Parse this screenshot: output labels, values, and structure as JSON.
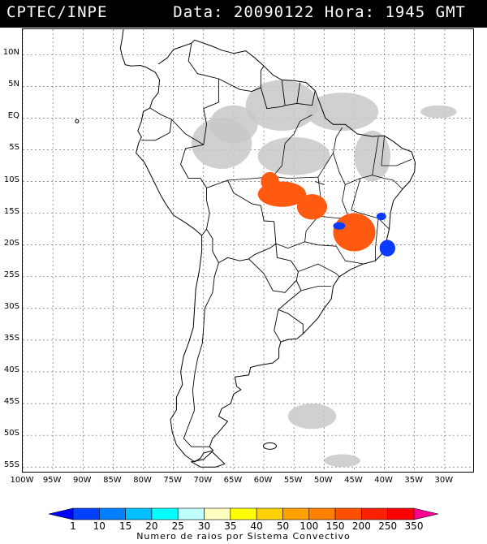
{
  "header": {
    "agency": "CPTEC/INPE",
    "datetime": "Data: 20090122 Hora: 1945 GMT"
  },
  "map": {
    "lon_range": [
      -100,
      -25
    ],
    "lat_range": [
      -56,
      14
    ],
    "lat_ticks": [
      {
        "value": 10,
        "label": "10N"
      },
      {
        "value": 5,
        "label": "5N"
      },
      {
        "value": 0,
        "label": "EQ"
      },
      {
        "value": -5,
        "label": "5S"
      },
      {
        "value": -10,
        "label": "10S"
      },
      {
        "value": -15,
        "label": "15S"
      },
      {
        "value": -20,
        "label": "20S"
      },
      {
        "value": -25,
        "label": "25S"
      },
      {
        "value": -30,
        "label": "30S"
      },
      {
        "value": -35,
        "label": "35S"
      },
      {
        "value": -40,
        "label": "40S"
      },
      {
        "value": -45,
        "label": "45S"
      },
      {
        "value": -50,
        "label": "50S"
      },
      {
        "value": -55,
        "label": "55S"
      }
    ],
    "lon_ticks": [
      {
        "value": -100,
        "label": "100W"
      },
      {
        "value": -95,
        "label": "95W"
      },
      {
        "value": -90,
        "label": "90W"
      },
      {
        "value": -85,
        "label": "85W"
      },
      {
        "value": -80,
        "label": "80W"
      },
      {
        "value": -75,
        "label": "75W"
      },
      {
        "value": -70,
        "label": "70W"
      },
      {
        "value": -65,
        "label": "65W"
      },
      {
        "value": -60,
        "label": "60W"
      },
      {
        "value": -55,
        "label": "55W"
      },
      {
        "value": -50,
        "label": "50W"
      },
      {
        "value": -45,
        "label": "45W"
      },
      {
        "value": -40,
        "label": "40W"
      },
      {
        "value": -35,
        "label": "35W"
      },
      {
        "value": -30,
        "label": "30W"
      }
    ],
    "colors": {
      "land_outline": "#000000",
      "grid": "#555555",
      "cloud": "#c8c8c8",
      "lightning_high": "#ff5a10",
      "lightning_low": "#0a3cff"
    },
    "cloud_areas": [
      {
        "lon": -57,
        "lat": 2,
        "rlon": 6,
        "rlat": 4
      },
      {
        "lon": -47,
        "lat": 1,
        "rlon": 6,
        "rlat": 3
      },
      {
        "lon": -67,
        "lat": -4,
        "rlon": 5,
        "rlat": 4
      },
      {
        "lon": -55,
        "lat": -6,
        "rlon": 6,
        "rlat": 3
      },
      {
        "lon": -42,
        "lat": -6,
        "rlon": 3,
        "rlat": 4
      },
      {
        "lon": -31,
        "lat": 1,
        "rlon": 3,
        "rlat": 1
      },
      {
        "lon": -52,
        "lat": -47,
        "rlon": 4,
        "rlat": 2
      },
      {
        "lon": -65,
        "lat": -1,
        "rlon": 4,
        "rlat": 3
      },
      {
        "lon": -47,
        "lat": -54,
        "rlon": 3,
        "rlat": 1
      }
    ],
    "lightning_areas": [
      {
        "lon": -57,
        "lat": -12,
        "rlon": 4,
        "rlat": 2,
        "level": "high"
      },
      {
        "lon": -52,
        "lat": -14,
        "rlon": 2.5,
        "rlat": 2,
        "level": "high"
      },
      {
        "lon": -45,
        "lat": -18,
        "rlon": 3.5,
        "rlat": 3,
        "level": "high"
      },
      {
        "lon": -59,
        "lat": -10,
        "rlon": 1.5,
        "rlat": 1.5,
        "level": "high"
      },
      {
        "lon": -39.5,
        "lat": -20.5,
        "rlon": 1.3,
        "rlat": 1.3,
        "level": "low"
      },
      {
        "lon": -47.5,
        "lat": -17,
        "rlon": 1,
        "rlat": 0.6,
        "level": "low"
      },
      {
        "lon": -40.5,
        "lat": -15.5,
        "rlon": 0.8,
        "rlat": 0.6,
        "level": "low"
      }
    ]
  },
  "colorbar": {
    "labels": [
      "1",
      "10",
      "15",
      "20",
      "25",
      "30",
      "35",
      "40",
      "50",
      "100",
      "150",
      "200",
      "250",
      "350"
    ],
    "colors": [
      "#0000ff",
      "#0040ff",
      "#0080ff",
      "#00bfff",
      "#00ffff",
      "#c0ffff",
      "#ffffc0",
      "#ffff00",
      "#ffd000",
      "#ffa000",
      "#ff8000",
      "#ff5000",
      "#ff2000",
      "#ff0000",
      "#ff0090"
    ],
    "title": "Numero de raios por Sistema Convectivo"
  }
}
